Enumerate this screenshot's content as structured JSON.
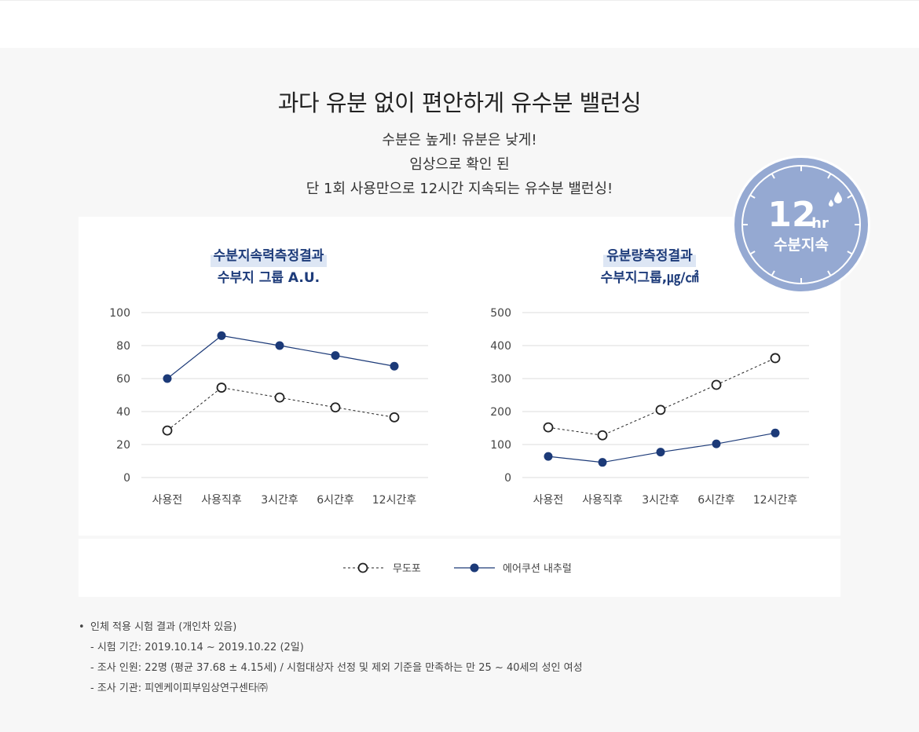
{
  "headline": "과다 유분 없이 편안하게 유수분 밸런싱",
  "subtitle_lines": [
    "수분은 높게! 유분은 낮게!",
    "임상으로 확인 된",
    "단 1회 사용만으로 12시간 지속되는 유수분 밸런싱!"
  ],
  "badge": {
    "number": "12",
    "unit": "hr",
    "label": "수분지속",
    "color": "#95a9d2"
  },
  "series_names": [
    "무도포",
    "에어쿠션 내추럴"
  ],
  "colors": {
    "navy": "#1c3a78",
    "dashed": "#222222",
    "grid": "#dddddd"
  },
  "chart_data": [
    {
      "type": "line",
      "title": "수분지속력측정결과",
      "subtitle": "수부지 그룹 A.U.",
      "categories": [
        "사용전",
        "사용직후",
        "3시간후",
        "6시간후",
        "12시간후"
      ],
      "yticks": [
        "0",
        "20",
        "40",
        "60",
        "80",
        "100"
      ],
      "ylim": [
        0,
        100
      ],
      "grid": true,
      "series": [
        {
          "name": "무도포",
          "style": "dashed-open",
          "values": [
            28.5,
            54.5,
            48.5,
            42.5,
            36.5
          ]
        },
        {
          "name": "에어쿠션 내추럴",
          "style": "solid-filled",
          "values": [
            60,
            86,
            80,
            74,
            67.5
          ]
        }
      ]
    },
    {
      "type": "line",
      "title": "유분량측정결과",
      "subtitle": "수부지그룹,㎍/㎠",
      "categories": [
        "사용전",
        "사용직후",
        "3시간후",
        "6시간후",
        "12시간후"
      ],
      "yticks": [
        "0",
        "100",
        "200",
        "300",
        "400",
        "500"
      ],
      "ylim": [
        0,
        500
      ],
      "grid": true,
      "series": [
        {
          "name": "무도포",
          "style": "dashed-open",
          "values": [
            152,
            128,
            205,
            281,
            362
          ]
        },
        {
          "name": "에어쿠션 내추럴",
          "style": "solid-filled",
          "values": [
            64,
            46,
            77,
            102,
            135
          ]
        }
      ]
    }
  ],
  "notes": {
    "bullet": "•",
    "title": "인체 적용 시험 결과 (개인차 있음)",
    "lines": [
      "- 시험 기간: 2019.10.14 ~ 2019.10.22 (2일)",
      "- 조사 인원: 22명 (평균 37.68 ± 4.15세) / 시험대상자 선정 및 제외 기준을 만족하는 만 25 ~ 40세의 성인 여성",
      "- 조사 기관: 피엔케이피부임상연구센타㈜"
    ]
  }
}
